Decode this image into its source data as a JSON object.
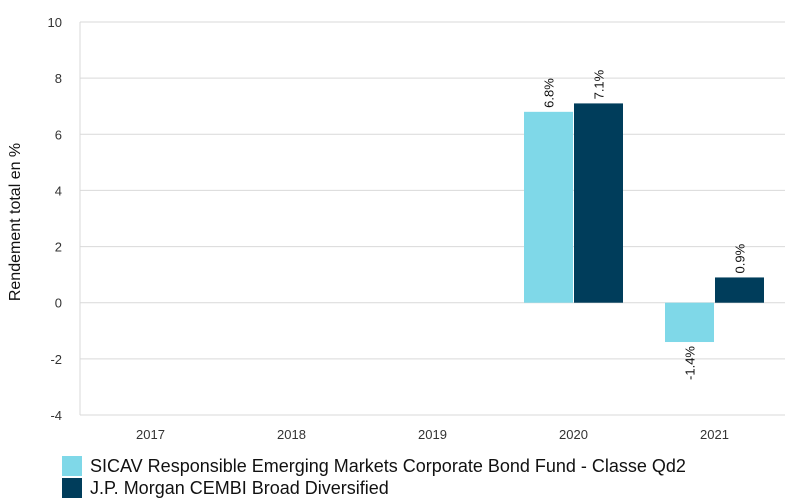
{
  "chart_data": {
    "type": "bar",
    "categories": [
      "2017",
      "2018",
      "2019",
      "2020",
      "2021"
    ],
    "series": [
      {
        "name": "SICAV Responsible Emerging Markets Corporate Bond Fund  - Classe Qd2",
        "values": [
          null,
          null,
          null,
          6.8,
          -1.4
        ],
        "labels": [
          null,
          null,
          null,
          "6.8%",
          "-1.4%"
        ],
        "color": "#7fd8e8"
      },
      {
        "name": "J.P. Morgan CEMBI Broad Diversified",
        "values": [
          null,
          null,
          null,
          7.1,
          0.9
        ],
        "labels": [
          null,
          null,
          null,
          "7.1%",
          "0.9%"
        ],
        "color": "#003d5b"
      }
    ],
    "ylabel": "Rendement total en %",
    "ylim": [
      -4,
      10
    ],
    "yticks": [
      "-4",
      "-2",
      "0",
      "2",
      "4",
      "6",
      "8",
      "10"
    ],
    "grid": true,
    "legend_position": "bottom-left"
  }
}
